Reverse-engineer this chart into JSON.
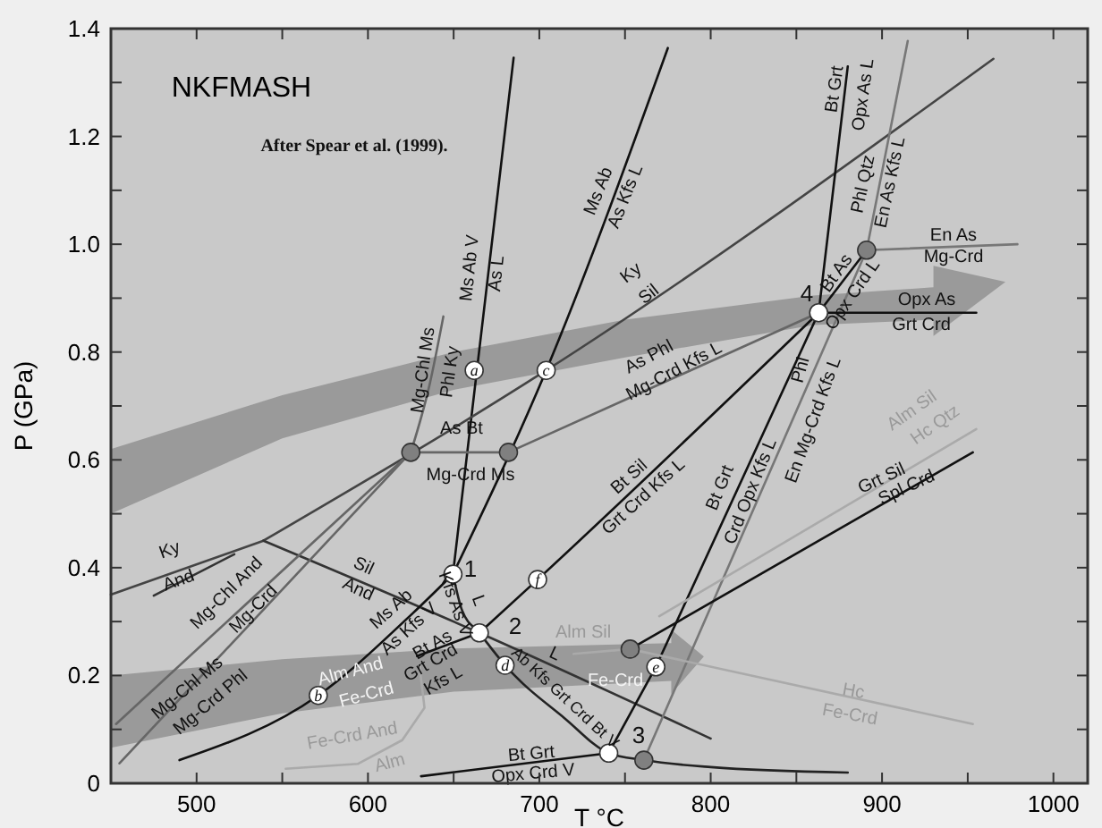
{
  "chart_data": {
    "type": "line",
    "title": "NKFMASH",
    "xlabel": "T °C",
    "ylabel": "P (GPa)",
    "xlim": [
      450,
      1020
    ],
    "ylim": [
      0,
      1.4
    ],
    "xticks": [
      500,
      {
        "value": 550,
        "label": null
      },
      600,
      {
        "value": 650,
        "label": null
      },
      700,
      {
        "value": 750,
        "label": null
      },
      800,
      {
        "value": 850,
        "label": null
      },
      900,
      {
        "value": 950,
        "label": null
      },
      1000
    ],
    "yticks": [
      0,
      {
        "value": 0.1,
        "label": null
      },
      0.2,
      {
        "value": 0.3,
        "label": null
      },
      0.4,
      {
        "value": 0.5,
        "label": null
      },
      0.6,
      {
        "value": 0.7,
        "label": null
      },
      0.8,
      {
        "value": 0.9,
        "label": null
      },
      {
        "value": 1,
        "label": "1.0"
      },
      {
        "value": 1.1,
        "label": null
      },
      1.2,
      {
        "value": 1.3,
        "label": null
      },
      1.4
    ],
    "grid": false,
    "line_style": "solid",
    "series": [
      {
        "color": "#111111",
        "x": [
          649.6,
          685
        ],
        "values": [
          0.388,
          1.346
        ]
      },
      {
        "color": "#111111",
        "x": [
          649.6,
          704,
          775
        ],
        "values": [
          0.388,
          0.766,
          1.364
        ]
      },
      {
        "color": "#444444",
        "x": [
          539,
          704,
          965
        ],
        "values": [
          0.45,
          0.766,
          1.344
        ]
      },
      {
        "color": "#444444",
        "x": [
          450,
          539
        ],
        "values": [
          0.35,
          0.45
        ]
      },
      {
        "color": "#333333",
        "x": [
          539,
          665,
          800
        ],
        "values": [
          0.45,
          0.279,
          0.083
        ]
      },
      {
        "color": "#333333",
        "x": [
          475,
          522
        ],
        "values": [
          0.348,
          0.425
        ]
      },
      {
        "color": "#666666",
        "x": [
          453,
          625
        ],
        "values": [
          0.11,
          0.614
        ]
      },
      {
        "color": "#666666",
        "x": [
          455,
          625
        ],
        "values": [
          0.037,
          0.614
        ]
      },
      {
        "color": "#666666",
        "x": [
          625,
          636,
          644
        ],
        "values": [
          0.614,
          0.74,
          0.866
        ]
      },
      {
        "color": "#666666",
        "x": [
          625,
          682
        ],
        "values": [
          0.614,
          0.614
        ]
      },
      {
        "color": "#666666",
        "x": [
          682,
          863
        ],
        "values": [
          0.614,
          0.873
        ]
      },
      {
        "color": "#111111",
        "x": [
          863,
          880
        ],
        "values": [
          0.873,
          1.33
        ]
      },
      {
        "color": "#777777",
        "x": [
          915,
          891,
          761
        ],
        "values": [
          1.377,
          0.989,
          0.043
        ]
      },
      {
        "color": "#777777",
        "x": [
          891,
          979
        ],
        "values": [
          0.989,
          1.0
        ]
      },
      {
        "color": "#111111",
        "x": [
          863,
          955
        ],
        "values": [
          0.873,
          0.873
        ]
      },
      {
        "color": "#111111",
        "x": [
          863,
          891
        ],
        "values": [
          0.873,
          0.989
        ]
      },
      {
        "color": "#111111",
        "x": [
          863,
          768,
          740.5
        ],
        "values": [
          0.873,
          0.216,
          0.056
        ]
      },
      {
        "color": "#111111",
        "x": [
          665,
          699,
          863
        ],
        "values": [
          0.279,
          0.378,
          0.873
        ]
      },
      {
        "color": "#111111",
        "x": [
          753,
          953
        ],
        "values": [
          0.249,
          0.614
        ]
      },
      {
        "color": "#aaaaaa",
        "x": [
          770,
          955
        ],
        "values": [
          0.31,
          0.657
        ]
      },
      {
        "color": "#aaaaaa",
        "x": [
          720,
          753
        ],
        "values": [
          0.24,
          0.249
        ]
      },
      {
        "color": "#aaaaaa",
        "x": [
          753,
          953
        ],
        "values": [
          0.249,
          0.11
        ]
      },
      {
        "color": "#aaaaaa",
        "x": [
          552,
          594,
          620,
          633,
          630
        ],
        "values": [
          0.027,
          0.036,
          0.08,
          0.14,
          0.22
        ]
      },
      {
        "color": "#111111",
        "x": [
          490,
          571,
          626,
          649.6
        ],
        "values": [
          0.043,
          0.163,
          0.315,
          0.388
        ]
      },
      {
        "color": "#222222",
        "x": [
          649.6,
          655,
          665,
          680,
          715,
          740.5,
          761,
          800,
          880
        ],
        "values": [
          0.388,
          0.32,
          0.279,
          0.219,
          0.12,
          0.056,
          0.043,
          0.03,
          0.02
        ]
      },
      {
        "color": "#111111",
        "x": [
          665,
          628.7
        ],
        "values": [
          0.279,
          0.236
        ]
      },
      {
        "color": "#111111",
        "x": [
          631,
          740.5
        ],
        "values": [
          0.013,
          0.056
        ]
      },
      {
        "type": "scatter",
        "marker": "circle",
        "color": "#ffffff",
        "x": [
          649.6,
          665,
          740.5,
          863,
          662,
          571,
          704,
          680,
          768,
          699
        ],
        "values": [
          0.388,
          0.279,
          0.056,
          0.873,
          0.766,
          0.163,
          0.766,
          0.219,
          0.216,
          0.378
        ]
      },
      {
        "type": "scatter",
        "marker": "circle",
        "color": "#808080",
        "x": [
          625,
          682,
          891,
          753,
          761
        ],
        "values": [
          0.614,
          0.614,
          0.989,
          0.249,
          0.043
        ]
      }
    ],
    "annotations": [
      "After Spear et al. (1999).",
      "Ms Ab V",
      "As L",
      "Mg-Chl Ms",
      "Phl Ky",
      "Ms Ab",
      "As Kfs L",
      "Ky",
      "Sil",
      "Bt Grt",
      "Opx As L",
      "Phl Qtz",
      "En As Kfs L",
      "En As",
      "Mg-Crd",
      "Bt As",
      "Opx Crd L",
      "Opx As",
      "Grt Crd",
      "As Phl",
      "Mg-Crd Kfs L",
      "Phl",
      "En Mg-Crd Kfs L",
      "As Bt",
      "Mg-Crd Ms",
      "Ky",
      "And",
      "Mg-Chl And",
      "Mg-Crd",
      "Sil",
      "And",
      "Mg-Chl Ms",
      "Mg-Crd Phl",
      "Ms Ab",
      "As Kfs V",
      "Kfs As V",
      "L",
      "Bt As",
      "Grt Crd",
      "Kfs L",
      "Ab Kfs Grt Crd Bt V",
      "L",
      "Bt Sil",
      "Grt Crd Kfs L",
      "Bt Grt",
      "Crd Opx Kfs L",
      "Alm Sil",
      "Hc Qtz",
      "Grt Sil",
      "Spl Crd",
      "Alm Sil",
      "Fe-Crd",
      "Hc",
      "Fe-Crd",
      "Fe-Crd And",
      "Alm",
      "Alm And",
      "Fe-Crd",
      "Bt Grt",
      "Opx Crd V",
      "1",
      "2",
      "3",
      "4",
      {
        "text": "a",
        "x": 662,
        "y": 0.766
      },
      {
        "text": "b",
        "x": 571,
        "y": 0.163
      },
      {
        "text": "c",
        "x": 704,
        "y": 0.766
      },
      {
        "text": "d",
        "x": 680,
        "y": 0.219
      },
      {
        "text": "e",
        "x": 768,
        "y": 0.216
      },
      {
        "text": "f",
        "x": 699,
        "y": 0.378
      }
    ]
  }
}
